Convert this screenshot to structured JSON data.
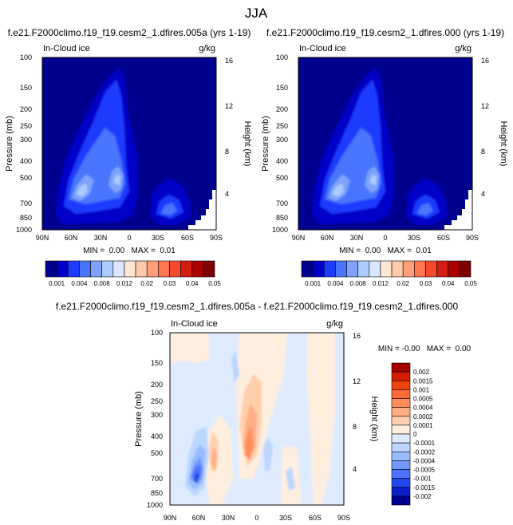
{
  "figure": {
    "title": "JJA"
  },
  "chart_data": [
    {
      "type": "heatmap",
      "title": "f.e21.F2000climo.f19_f19.cesm2_1.dfires.005a (yrs 1-19)",
      "subtitle_left": "In-Cloud ice",
      "units": "g/kg",
      "x_ticks": [
        "90N",
        "60N",
        "30N",
        "0",
        "30S",
        "60S",
        "90S"
      ],
      "y_left_label": "Pressure (mb)",
      "y_left_ticks": [
        "100",
        "150",
        "200",
        "250",
        "300",
        "400",
        "500",
        "700",
        "850",
        "1000"
      ],
      "y_right_label": "Height (km)",
      "y_right_ticks": [
        "4",
        "8",
        "12",
        "16"
      ],
      "minmax_text": "MIN =  0.00   MAX =  0.01",
      "colorbar_labels": [
        "0.001",
        "0.004",
        "0.008",
        "0.012",
        "0.02",
        "0.03",
        "0.04",
        "0.05"
      ],
      "colorbar_colors": [
        "#00008e",
        "#0000c8",
        "#1f3bff",
        "#4a74ff",
        "#7da3ff",
        "#aecbff",
        "#d9e6ff",
        "#ffe7d5",
        "#ffc8a8",
        "#ffa07a",
        "#ff7650",
        "#f24a2a",
        "#d41d12",
        "#ac0000",
        "#7e0000"
      ]
    },
    {
      "type": "heatmap",
      "title": "f.e21.F2000climo.f19_f19.cesm2_1.dfires.000 (yrs 1-19)",
      "subtitle_left": "In-Cloud ice",
      "units": "g/kg",
      "x_ticks": [
        "90N",
        "60N",
        "30N",
        "0",
        "30S",
        "60S",
        "90S"
      ],
      "y_left_label": "Pressure (mb)",
      "y_left_ticks": [
        "100",
        "150",
        "200",
        "250",
        "300",
        "400",
        "500",
        "700",
        "850",
        "1000"
      ],
      "y_right_label": "Height (km)",
      "y_right_ticks": [
        "4",
        "8",
        "12",
        "16"
      ],
      "minmax_text": "MIN =  0.00   MAX =  0.01",
      "colorbar_labels": [
        "0.001",
        "0.004",
        "0.008",
        "0.012",
        "0.02",
        "0.03",
        "0.04",
        "0.05"
      ],
      "colorbar_colors": [
        "#00008e",
        "#0000c8",
        "#1f3bff",
        "#4a74ff",
        "#7da3ff",
        "#aecbff",
        "#d9e6ff",
        "#ffe7d5",
        "#ffc8a8",
        "#ffa07a",
        "#ff7650",
        "#f24a2a",
        "#d41d12",
        "#ac0000",
        "#7e0000"
      ]
    },
    {
      "type": "heatmap",
      "title": "f.e21.F2000climo.f19_f19.cesm2_1.dfires.005a - f.e21.F2000climo.f19_f19.cesm2_1.dfires.000",
      "subtitle_left": "In-Cloud ice",
      "units": "g/kg",
      "x_ticks": [
        "90N",
        "60N",
        "30N",
        "0",
        "30S",
        "60S",
        "90S"
      ],
      "y_left_label": "Pressure (mb)",
      "y_left_ticks": [
        "100",
        "150",
        "200",
        "250",
        "300",
        "400",
        "500",
        "700",
        "850",
        "1000"
      ],
      "y_right_label": "Height (km)",
      "y_right_ticks": [
        "4",
        "8",
        "12",
        "16"
      ],
      "minmax_text": "MIN = -0.00   MAX =  0.00",
      "colorbar_labels": [
        "0.002",
        "0.0015",
        "0.001",
        "0.0005",
        "0.0004",
        "0.0002",
        "0.0001",
        "0",
        "-0.0001",
        "-0.0002",
        "-0.0004",
        "-0.0005",
        "-0.001",
        "-0.0015",
        "-0.002"
      ],
      "colorbar_colors": [
        "#a50000",
        "#d61c00",
        "#f04310",
        "#ff6a35",
        "#ff8d5c",
        "#ffad85",
        "#ffcfae",
        "#ffeede",
        "#deebff",
        "#bcd6ff",
        "#98bcff",
        "#7399ff",
        "#4d72ff",
        "#2146f0",
        "#0a1fc8",
        "#00008e"
      ]
    }
  ]
}
